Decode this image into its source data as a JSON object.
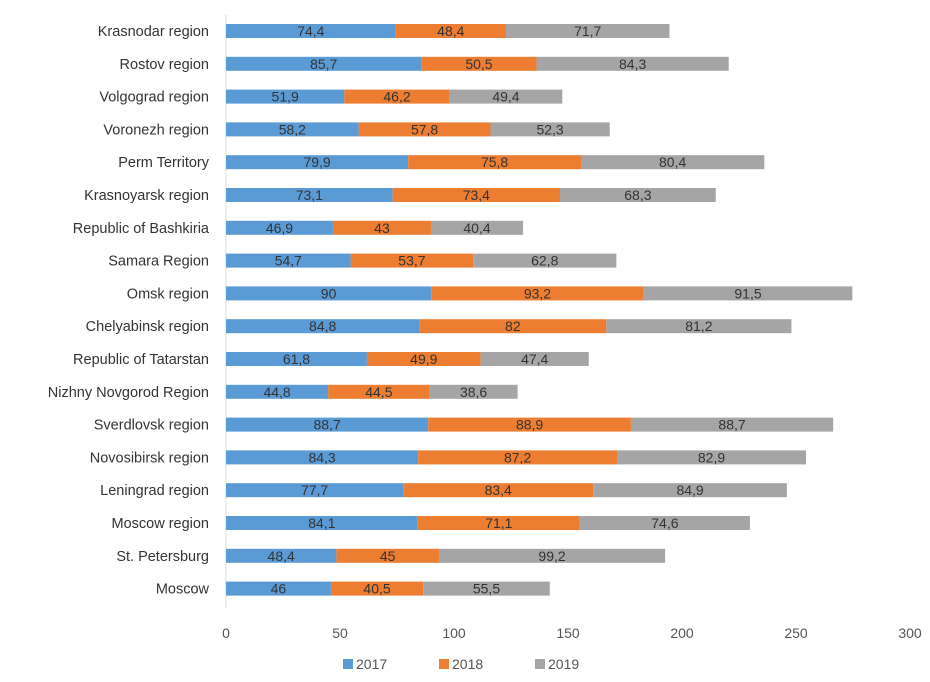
{
  "chart_data": {
    "type": "bar",
    "orientation": "horizontal",
    "stacked": true,
    "categories": [
      "Krasnodar region",
      "Rostov region",
      "Volgograd region",
      "Voronezh region",
      "Perm Territory",
      "Krasnoyarsk region",
      "Republic of Bashkiria",
      "Samara Region",
      "Omsk region",
      "Chelyabinsk region",
      "Republic of Tatarstan",
      "Nizhny Novgorod Region",
      "Sverdlovsk region",
      "Novosibirsk region",
      "Leningrad region",
      "Moscow region",
      "St. Petersburg",
      "Moscow"
    ],
    "series": [
      {
        "name": "2017",
        "color": "#5b9bd5",
        "values": [
          74.4,
          85.7,
          51.9,
          58.2,
          79.9,
          73.1,
          46.9,
          54.7,
          90,
          84.8,
          61.8,
          44.8,
          88.7,
          84.3,
          77.7,
          84.1,
          48.4,
          46
        ],
        "labels": [
          "74,4",
          "85,7",
          "51,9",
          "58,2",
          "79,9",
          "73,1",
          "46,9",
          "54,7",
          "90",
          "84,8",
          "61,8",
          "44,8",
          "88,7",
          "84,3",
          "77,7",
          "84,1",
          "48,4",
          "46"
        ]
      },
      {
        "name": "2018",
        "color": "#ed7d31",
        "values": [
          48.4,
          50.5,
          46.2,
          57.8,
          75.8,
          73.4,
          43,
          53.7,
          93.2,
          82,
          49.9,
          44.5,
          88.9,
          87.2,
          83.4,
          71.1,
          45,
          40.5
        ],
        "labels": [
          "48,4",
          "50,5",
          "46,2",
          "57,8",
          "75,8",
          "73,4",
          "43",
          "53,7",
          "93,2",
          "82",
          "49,9",
          "44,5",
          "88,9",
          "87,2",
          "83,4",
          "71,1",
          "45",
          "40,5"
        ]
      },
      {
        "name": "2019",
        "color": "#a5a5a5",
        "values": [
          71.7,
          84.3,
          49.4,
          52.3,
          80.4,
          68.3,
          40.4,
          62.8,
          91.5,
          81.2,
          47.4,
          38.6,
          88.7,
          82.9,
          84.9,
          74.6,
          99.2,
          55.5
        ],
        "labels": [
          "71,7",
          "84,3",
          "49,4",
          "52,3",
          "80,4",
          "68,3",
          "40,4",
          "62,8",
          "91,5",
          "81,2",
          "47,4",
          "38,6",
          "88,7",
          "82,9",
          "84,9",
          "74,6",
          "99,2",
          "55,5"
        ]
      }
    ],
    "x_ticks": [
      "0",
      "50",
      "100",
      "150",
      "200",
      "250",
      "300"
    ],
    "xlim": [
      0,
      300
    ],
    "title": "",
    "xlabel": "",
    "ylabel": "",
    "grid": false,
    "legend_position": "bottom",
    "colors": {
      "text": "#333333",
      "tick_text": "#555555",
      "axis_line": "#d9d9d9"
    }
  }
}
